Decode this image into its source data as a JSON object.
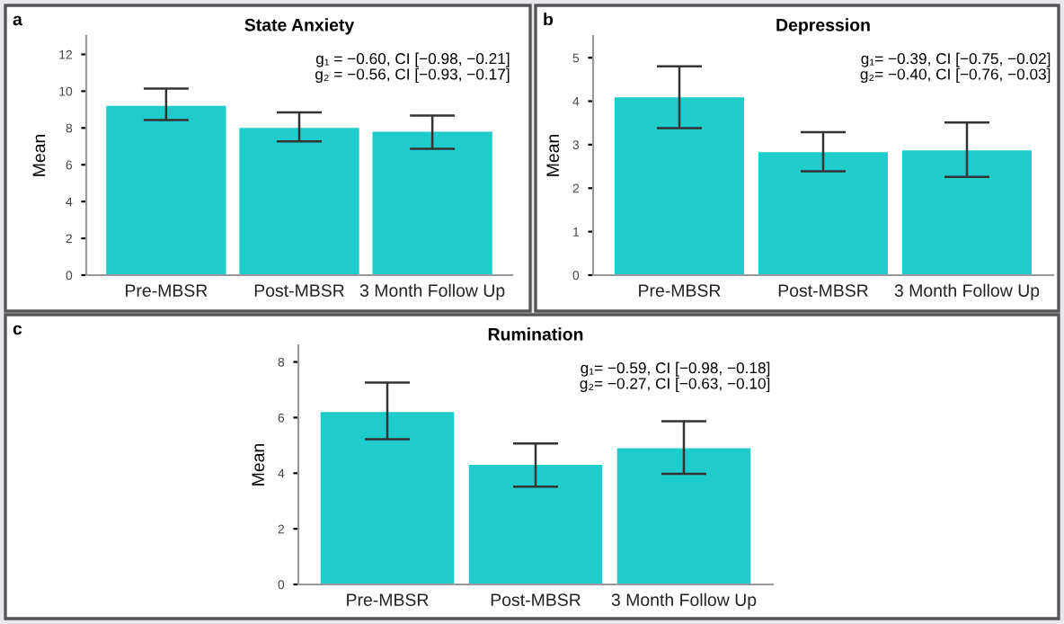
{
  "chart_data": [
    {
      "type": "bar",
      "title": "State Anxiety",
      "ylabel": "Mean",
      "categories": [
        "Pre-MBSR",
        "Post-MBSR",
        "3 Month Follow Up"
      ],
      "series": [
        {
          "color": "#1ecccc",
          "values": [
            9.2,
            8.0,
            7.8
          ],
          "errors": [
            [
              8.43,
              10.14
            ],
            [
              7.27,
              8.85
            ],
            [
              6.87,
              8.67
            ]
          ]
        }
      ],
      "ylim": [
        0,
        13
      ],
      "yticks": [
        0,
        2,
        4,
        6,
        8,
        10,
        12
      ],
      "grid": false,
      "legend": false,
      "annotations": [
        "a",
        "g₁ = −0.60, CI [−0.98, −0.21]\ng₂ = −0.56, CI [−0.93, −0.17]"
      ]
    },
    {
      "type": "bar",
      "title": "Depression",
      "ylabel": "Mean",
      "categories": [
        "Pre-MBSR",
        "Post-MBSR",
        "3 Month Follow Up"
      ],
      "series": [
        {
          "color": "#1ecccc",
          "values": [
            4.09,
            2.83,
            2.87
          ],
          "errors": [
            [
              3.38,
              4.8
            ],
            [
              2.39,
              3.29
            ],
            [
              2.26,
              3.51
            ]
          ]
        }
      ],
      "ylim": [
        0,
        5.5
      ],
      "yticks": [
        0,
        1,
        2,
        3,
        4,
        5
      ],
      "grid": false,
      "legend": false,
      "annotations": [
        "b",
        "g₁= −0.39, CI [−0.75, −0.02]\ng₂= −0.40, CI [−0.76, −0.03]"
      ]
    },
    {
      "type": "bar",
      "title": "Rumination",
      "ylabel": "Mean",
      "categories": [
        "Pre-MBSR",
        "Post-MBSR",
        "3 Month Follow Up"
      ],
      "series": [
        {
          "color": "#1ecccc",
          "values": [
            6.2,
            4.3,
            4.9
          ],
          "errors": [
            [
              5.22,
              7.26
            ],
            [
              3.52,
              5.07
            ],
            [
              3.98,
              5.87
            ]
          ]
        }
      ],
      "ylim": [
        0,
        8.6
      ],
      "yticks": [
        0,
        2,
        4,
        6,
        8
      ],
      "grid": false,
      "legend": false,
      "annotations": [
        "c",
        "g₁= −0.59, CI [−0.98, −0.18]\ng₂= −0.27, CI [−0.63, −0.10]"
      ]
    }
  ]
}
